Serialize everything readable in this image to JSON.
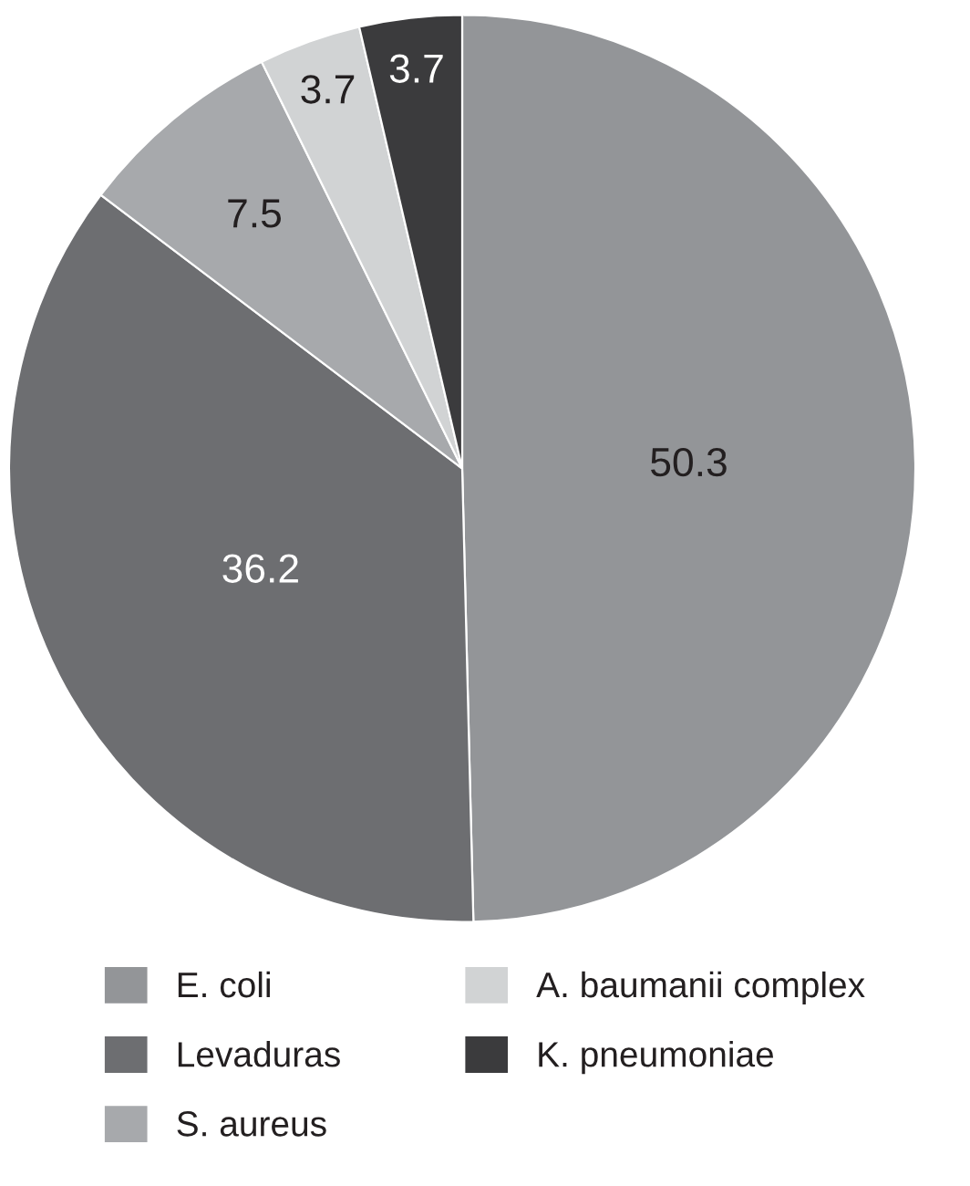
{
  "chart_data": {
    "type": "pie",
    "categories": [
      "E. coli",
      "Levaduras",
      "S. aureus",
      "A. baumanii complex",
      "K. pneumoniae"
    ],
    "values": [
      50.3,
      36.2,
      7.5,
      3.7,
      3.7
    ],
    "colors": [
      "#939598",
      "#6d6e71",
      "#a7a9ac",
      "#d1d3d4",
      "#3b3b3d"
    ],
    "data_labels": true,
    "legend": "bottom"
  }
}
